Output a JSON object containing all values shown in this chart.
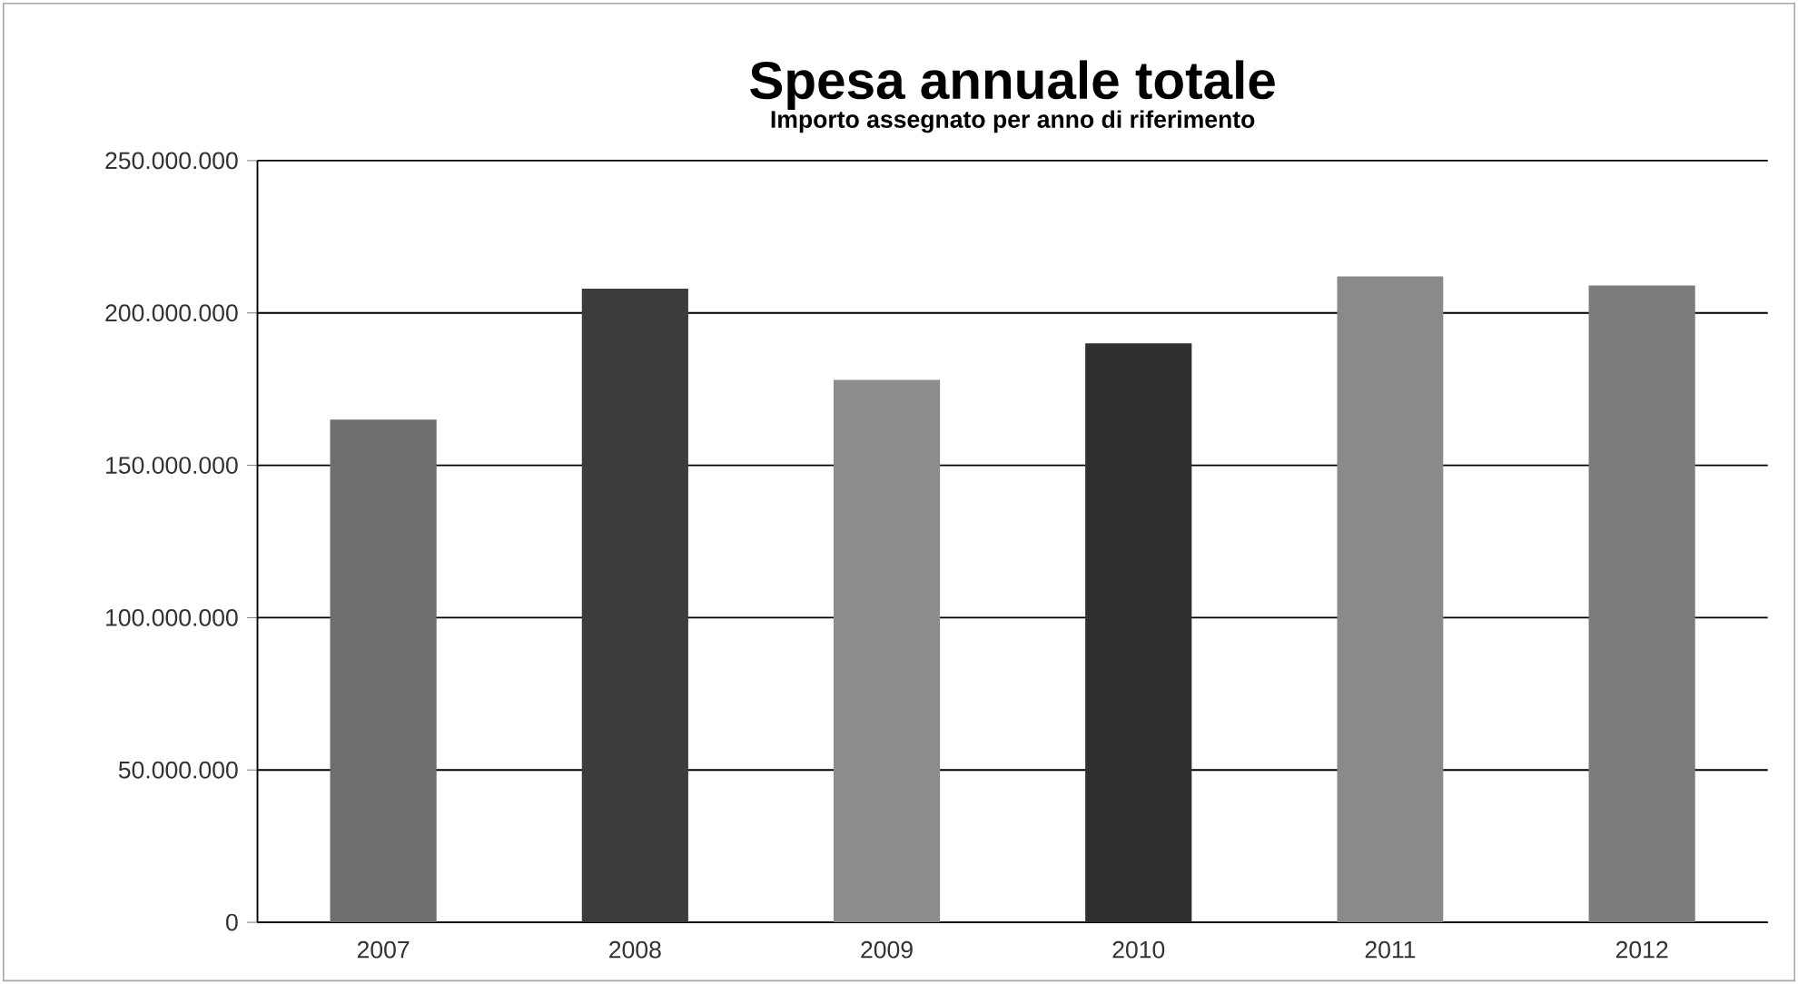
{
  "chart_data": {
    "type": "bar",
    "title": "Spesa annuale totale",
    "subtitle": "Importo assegnato per anno di riferimento",
    "categories": [
      "2007",
      "2008",
      "2009",
      "2010",
      "2011",
      "2012"
    ],
    "values": [
      165000000,
      208000000,
      178000000,
      190000000,
      212000000,
      209000000
    ],
    "colors": [
      "#6e6e6e",
      "#3c3c3c",
      "#8c8c8c",
      "#303030",
      "#8a8a8a",
      "#7c7c7c"
    ],
    "ylim": [
      0,
      250000000
    ],
    "yticks": [
      {
        "value": 0,
        "label": "0"
      },
      {
        "value": 50000000,
        "label": "50.000.000"
      },
      {
        "value": 100000000,
        "label": "100.000.000"
      },
      {
        "value": 150000000,
        "label": "150.000.000"
      },
      {
        "value": 200000000,
        "label": "200.000.000"
      },
      {
        "value": 250000000,
        "label": "250.000.000"
      }
    ],
    "grid": "y"
  }
}
